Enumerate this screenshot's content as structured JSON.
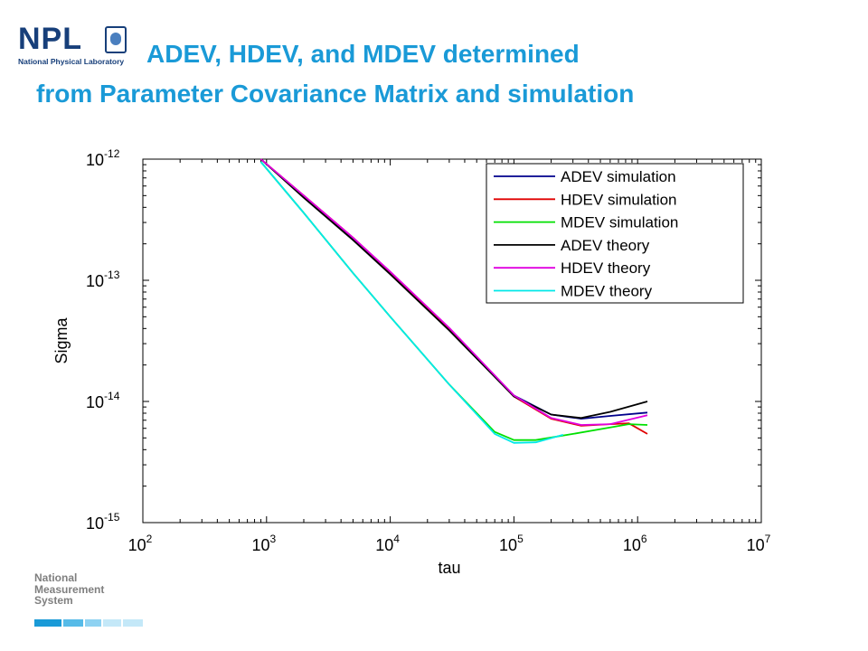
{
  "header": {
    "logo_text": "NPL",
    "logo_subtitle": "National Physical Laboratory",
    "title_line1": "ADEV, HDEV, and MDEV determined",
    "title_line2": "from Parameter Covariance Matrix and simulation",
    "title_color": "#1a9ad7",
    "logo_color": "#173f7a"
  },
  "footer": {
    "logo_lines": [
      "National",
      "Measurement",
      "System"
    ],
    "bar_colors": [
      "#1a9ad7",
      "#56bbe8",
      "#8ed2f2",
      "#c4e8f8"
    ]
  },
  "chart_data": {
    "type": "line",
    "title": "",
    "xlabel": "tau",
    "ylabel": "Sigma",
    "xscale": "log",
    "yscale": "log",
    "xlim": [
      100,
      10000000
    ],
    "ylim": [
      1e-15,
      1e-12
    ],
    "x_ticks": [
      {
        "base": "10",
        "exp": "2"
      },
      {
        "base": "10",
        "exp": "3"
      },
      {
        "base": "10",
        "exp": "4"
      },
      {
        "base": "10",
        "exp": "5"
      },
      {
        "base": "10",
        "exp": "6"
      },
      {
        "base": "10",
        "exp": "7"
      }
    ],
    "y_ticks": [
      {
        "base": "10",
        "exp": "-12"
      },
      {
        "base": "10",
        "exp": "-13"
      },
      {
        "base": "10",
        "exp": "-14"
      },
      {
        "base": "10",
        "exp": "-15"
      }
    ],
    "grid": false,
    "legend_position": "top-right",
    "series": [
      {
        "name": "ADEV simulation",
        "color": "#00008b",
        "x": [
          900,
          2000,
          5000,
          10000,
          30000,
          100000,
          200000,
          350000,
          600000,
          1200000
        ],
        "y": [
          1e-12,
          4.9e-13,
          2.2e-13,
          1.15e-13,
          3.9e-14,
          1.12e-14,
          7.8e-15,
          7.2e-15,
          7.6e-15,
          8.1e-15
        ]
      },
      {
        "name": "HDEV simulation",
        "color": "#e00000",
        "x": [
          900,
          2000,
          5000,
          10000,
          30000,
          100000,
          200000,
          350000,
          600000,
          850000,
          1200000
        ],
        "y": [
          1e-12,
          5e-13,
          2.25e-13,
          1.17e-13,
          4e-14,
          1.1e-14,
          7.2e-15,
          6.3e-15,
          6.5e-15,
          6.6e-15,
          5.4e-15
        ]
      },
      {
        "name": "MDEV simulation",
        "color": "#00e000",
        "x": [
          900,
          2000,
          5000,
          10000,
          30000,
          70000,
          100000,
          150000,
          300000,
          600000,
          850000,
          1200000
        ],
        "y": [
          9.5e-13,
          3.6e-13,
          1.15e-13,
          5e-14,
          1.38e-14,
          5.6e-15,
          4.8e-15,
          4.8e-15,
          5.4e-15,
          6.1e-15,
          6.5e-15,
          6.4e-15
        ]
      },
      {
        "name": "ADEV theory",
        "color": "#000000",
        "x": [
          900,
          2000,
          5000,
          10000,
          30000,
          100000,
          200000,
          350000,
          600000,
          1200000
        ],
        "y": [
          1e-12,
          4.8e-13,
          2.15e-13,
          1.12e-13,
          3.85e-14,
          1.1e-14,
          7.8e-15,
          7.3e-15,
          8.2e-15,
          1e-14
        ]
      },
      {
        "name": "HDEV theory",
        "color": "#e000e0",
        "x": [
          900,
          2000,
          5000,
          10000,
          30000,
          100000,
          200000,
          350000,
          600000,
          1200000
        ],
        "y": [
          1e-12,
          5e-13,
          2.25e-13,
          1.18e-13,
          4.05e-14,
          1.12e-14,
          7.3e-15,
          6.4e-15,
          6.5e-15,
          7.7e-15
        ]
      },
      {
        "name": "MDEV theory",
        "color": "#00e8e8",
        "x": [
          900,
          2000,
          5000,
          10000,
          30000,
          70000,
          100000,
          150000,
          250000
        ],
        "y": [
          9.5e-13,
          3.6e-13,
          1.15e-13,
          5e-14,
          1.38e-14,
          5.4e-15,
          4.55e-15,
          4.6e-15,
          5.3e-15
        ]
      }
    ]
  }
}
